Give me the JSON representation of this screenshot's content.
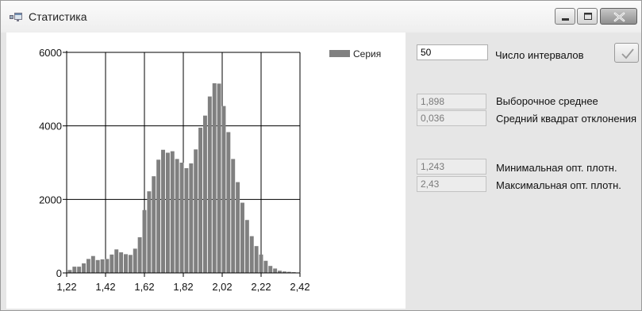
{
  "window": {
    "title": "Статистика",
    "icons": {
      "app": "app-window-icon",
      "minimize": "minimize-icon",
      "maximize": "maximize-icon",
      "close": "close-icon"
    }
  },
  "chart_data": {
    "type": "bar",
    "title": "",
    "xlabel": "",
    "ylabel": "",
    "xlim": [
      1.22,
      2.42
    ],
    "ylim": [
      0,
      6000
    ],
    "x_ticks": [
      "1,22",
      "1,42",
      "1,62",
      "1,82",
      "2,02",
      "2,22",
      "2,42"
    ],
    "y_ticks": [
      "0",
      "2000",
      "4000",
      "6000"
    ],
    "grid": true,
    "legend": "top-right",
    "color": "#808080",
    "series": [
      {
        "name": "Серия",
        "x": [
          1.236,
          1.26,
          1.284,
          1.308,
          1.332,
          1.356,
          1.38,
          1.404,
          1.428,
          1.452,
          1.476,
          1.5,
          1.524,
          1.548,
          1.572,
          1.596,
          1.62,
          1.644,
          1.668,
          1.692,
          1.716,
          1.74,
          1.764,
          1.788,
          1.812,
          1.836,
          1.86,
          1.884,
          1.908,
          1.932,
          1.956,
          1.98,
          2.004,
          2.028,
          2.052,
          2.076,
          2.1,
          2.124,
          2.148,
          2.172,
          2.196,
          2.22,
          2.244,
          2.268,
          2.292,
          2.316,
          2.34,
          2.364,
          2.388,
          2.412
        ],
        "values": [
          80,
          170,
          170,
          260,
          380,
          460,
          350,
          370,
          380,
          500,
          640,
          560,
          510,
          490,
          660,
          970,
          1710,
          2220,
          2630,
          3080,
          3350,
          3270,
          3310,
          3100,
          3000,
          2850,
          2980,
          3360,
          3950,
          4280,
          4800,
          5160,
          5150,
          4540,
          3830,
          3100,
          2470,
          1910,
          1440,
          1000,
          730,
          500,
          330,
          190,
          120,
          60,
          40,
          30,
          20,
          10
        ]
      }
    ]
  },
  "controls": {
    "intervals": {
      "value": "50",
      "label": "Число интервалов",
      "ok_icon": "checkmark-icon"
    },
    "mean": {
      "value": "1,898",
      "label": "Выборочное среднее"
    },
    "sq_dev": {
      "value": "0,036",
      "label": "Средний квадрат отклонения"
    },
    "min_density": {
      "value": "1,243",
      "label": "Минимальная опт. плотн."
    },
    "max_density": {
      "value": "2,43",
      "label": "Максимальная опт. плотн."
    }
  }
}
